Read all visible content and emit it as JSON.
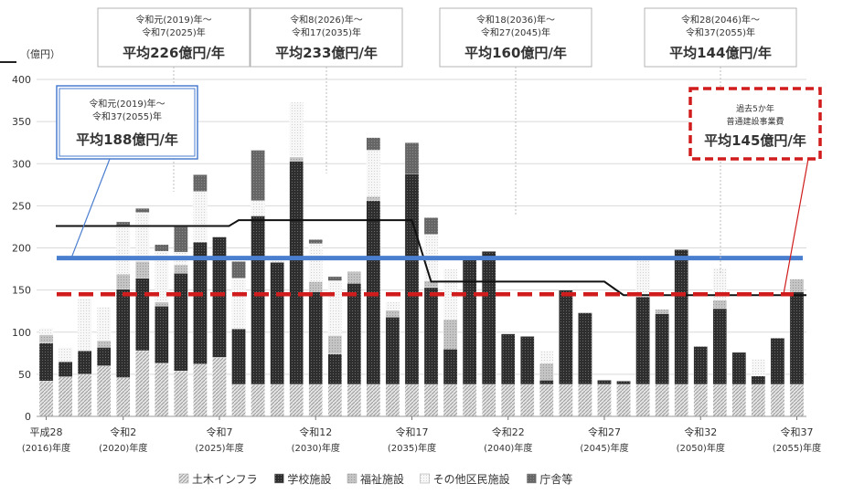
{
  "chart_data": {
    "type": "bar",
    "stacked": true,
    "ylabel": "（億円）",
    "ylim": [
      0,
      400
    ],
    "yticks": [
      0,
      50,
      100,
      150,
      200,
      250,
      300,
      350,
      400
    ],
    "x_start_year": 2016,
    "x_labels": [
      {
        "year": 2016,
        "line1": "平成28",
        "line2": "(2016)年度"
      },
      {
        "year": 2020,
        "line1": "令和2",
        "line2": "(2020)年度"
      },
      {
        "year": 2025,
        "line1": "令和7",
        "line2": "(2025)年度"
      },
      {
        "year": 2030,
        "line1": "令和12",
        "line2": "(2030)年度"
      },
      {
        "year": 2035,
        "line1": "令和17",
        "line2": "(2035)年度"
      },
      {
        "year": 2040,
        "line1": "令和22",
        "line2": "(2040)年度"
      },
      {
        "year": 2045,
        "line1": "令和27",
        "line2": "(2045)年度"
      },
      {
        "year": 2050,
        "line1": "令和32",
        "line2": "(2050)年度"
      },
      {
        "year": 2055,
        "line1": "令和37",
        "line2": "(2055)年度"
      }
    ],
    "legend": [
      {
        "name": "土木インフラ",
        "color": "#c8c8c8"
      },
      {
        "name": "学校施設",
        "color": "#333333"
      },
      {
        "name": "福祉施設",
        "color": "#bdbdbd"
      },
      {
        "name": "その他区民施設",
        "color": "#f2f2f2"
      },
      {
        "name": "庁舎等",
        "color": "#6b6b6b"
      }
    ],
    "series": [
      {
        "name": "土木インフラ",
        "values": [
          42,
          47,
          50,
          60,
          46,
          78,
          63,
          54,
          62,
          70,
          38,
          38,
          38,
          38,
          38,
          38,
          38,
          38,
          38,
          38,
          38,
          38,
          38,
          38,
          38,
          38,
          38,
          38,
          38,
          38,
          38,
          38,
          38,
          38,
          38,
          38,
          38,
          38,
          38,
          38
        ]
      },
      {
        "name": "学校施設",
        "values": [
          45,
          18,
          28,
          22,
          105,
          86,
          68,
          116,
          145,
          143,
          66,
          200,
          145,
          265,
          110,
          36,
          120,
          218,
          80,
          250,
          115,
          42,
          148,
          158,
          60,
          57,
          5,
          112,
          85,
          5,
          4,
          104,
          84,
          160,
          45,
          90,
          38,
          10,
          55,
          110
        ]
      },
      {
        "name": "福祉施設",
        "values": [
          10,
          0,
          0,
          8,
          18,
          20,
          5,
          10,
          0,
          0,
          0,
          0,
          0,
          5,
          12,
          22,
          14,
          5,
          8,
          0,
          8,
          35,
          0,
          0,
          0,
          0,
          20,
          0,
          0,
          0,
          0,
          0,
          5,
          0,
          0,
          10,
          0,
          0,
          0,
          15
        ]
      },
      {
        "name": "その他区民施設",
        "values": [
          8,
          17,
          62,
          40,
          58,
          58,
          60,
          15,
          60,
          0,
          60,
          18,
          8,
          65,
          45,
          65,
          0,
          55,
          10,
          0,
          55,
          60,
          0,
          0,
          0,
          0,
          15,
          0,
          0,
          0,
          0,
          48,
          0,
          0,
          0,
          38,
          0,
          20,
          0,
          0
        ]
      },
      {
        "name": "庁舎等",
        "values": [
          0,
          0,
          0,
          0,
          4,
          5,
          8,
          30,
          20,
          0,
          20,
          60,
          0,
          0,
          5,
          5,
          0,
          15,
          0,
          37,
          20,
          0,
          0,
          0,
          0,
          0,
          0,
          0,
          0,
          0,
          0,
          0,
          0,
          0,
          0,
          0,
          0,
          0,
          0,
          0
        ]
      }
    ],
    "lines": [
      {
        "label": "period-average",
        "color": "#111111",
        "points": [
          [
            2016.5,
            226
          ],
          [
            2025.5,
            226
          ],
          [
            2026,
            233
          ],
          [
            2035,
            233
          ],
          [
            2036,
            160
          ],
          [
            2045,
            160
          ],
          [
            2046,
            144
          ],
          [
            2055.5,
            144
          ]
        ]
      },
      {
        "label": "total-average",
        "color": "#4a7ecf",
        "y": 188
      },
      {
        "label": "past-5yr",
        "color": "#d01c1c",
        "y": 145,
        "dashed": true
      }
    ]
  },
  "period_boxes": [
    {
      "line1": "令和元(2019)年～",
      "line2": "令和7(2025)年",
      "main": "平均226億円/年"
    },
    {
      "line1": "令和8(2026)年～",
      "line2": "令和17(2035)年",
      "main": "平均233億円/年"
    },
    {
      "line1": "令和18(2036)年～",
      "line2": "令和27(2045)年",
      "main": "平均160億円/年"
    },
    {
      "line1": "令和28(2046)年～",
      "line2": "令和37(2055)年",
      "main": "平均144億円/年"
    }
  ],
  "total_box": {
    "line1": "令和元(2019)年～",
    "line2": "令和37(2055)年",
    "main": "平均188億円/年"
  },
  "past_box": {
    "line1": "過去5か年",
    "line2": "普通建設事業費",
    "main": "平均145億円/年"
  }
}
